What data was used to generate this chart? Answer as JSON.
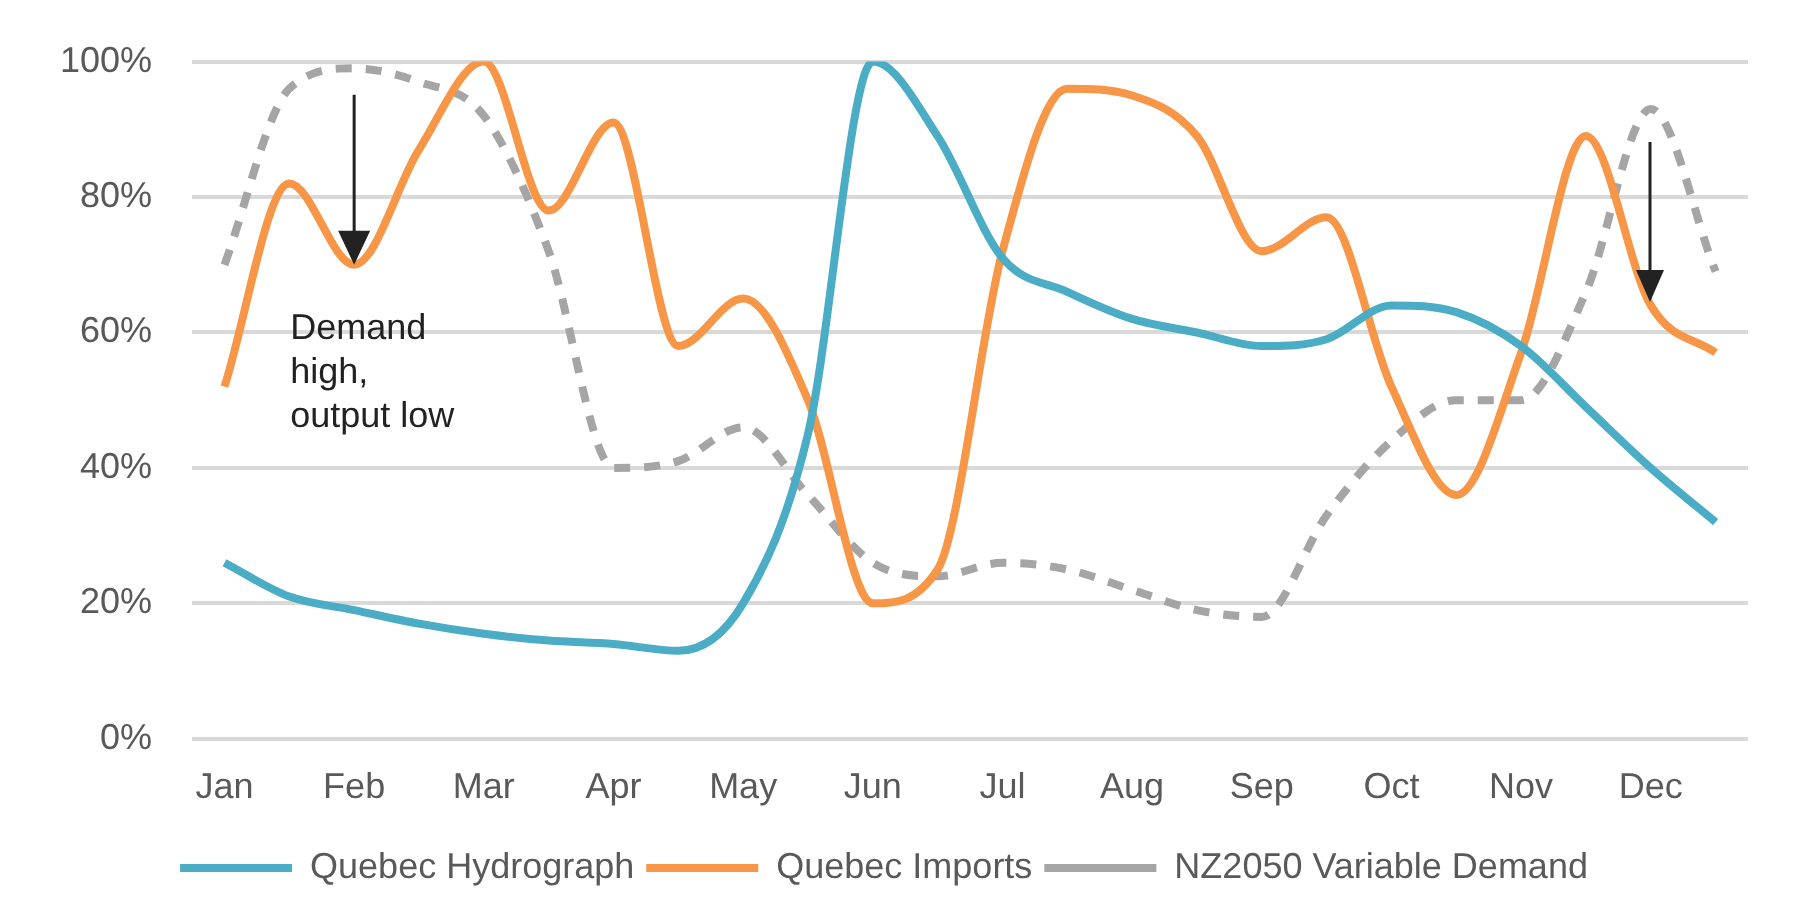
{
  "chart_data": {
    "type": "line",
    "categories": [
      "Jan",
      null,
      "Feb",
      null,
      "Mar",
      null,
      "Apr",
      null,
      "May",
      null,
      "Jun",
      null,
      "Jul",
      null,
      "Aug",
      null,
      "Sep",
      null,
      "Oct",
      null,
      "Nov",
      null,
      "Dec",
      null
    ],
    "series": [
      {
        "name": "Quebec Hydrograph",
        "color": "#4bacc6",
        "values": [
          26,
          21,
          19,
          17,
          15.5,
          14.5,
          14,
          13,
          20,
          45,
          100,
          89,
          71,
          66,
          62,
          60,
          58,
          59,
          64,
          63,
          58,
          49,
          40,
          32
        ]
      },
      {
        "name": "Quebec Imports",
        "color": "#f79646",
        "values": [
          52,
          82,
          70,
          87,
          100,
          78,
          91,
          58,
          65,
          50,
          20,
          25,
          72,
          96,
          95,
          89,
          72,
          77,
          52,
          36,
          57,
          89,
          64,
          57
        ]
      },
      {
        "name": "NZ2050 Variable Demand",
        "color": "#a5a5a5",
        "line_style": "dashed",
        "values": [
          70,
          96,
          99,
          97,
          92,
          72,
          40,
          41,
          46,
          36,
          26,
          24,
          26,
          25,
          22,
          19,
          18,
          33,
          44,
          50,
          50,
          66,
          93,
          69
        ]
      }
    ],
    "ylim": [
      0,
      100
    ],
    "yticks": [
      {
        "value": 0,
        "label": "0%"
      },
      {
        "value": 20,
        "label": "20%"
      },
      {
        "value": 40,
        "label": "40%"
      },
      {
        "value": 60,
        "label": "60%"
      },
      {
        "value": 80,
        "label": "80%"
      },
      {
        "value": 100,
        "label": "100%"
      }
    ],
    "grid": "y",
    "legend": "bottom",
    "marker": "none",
    "line_style": "solid",
    "annotations": [
      {
        "text": "Demand\nhigh,\noutput low",
        "x": "Feb",
        "y": 70
      }
    ]
  }
}
